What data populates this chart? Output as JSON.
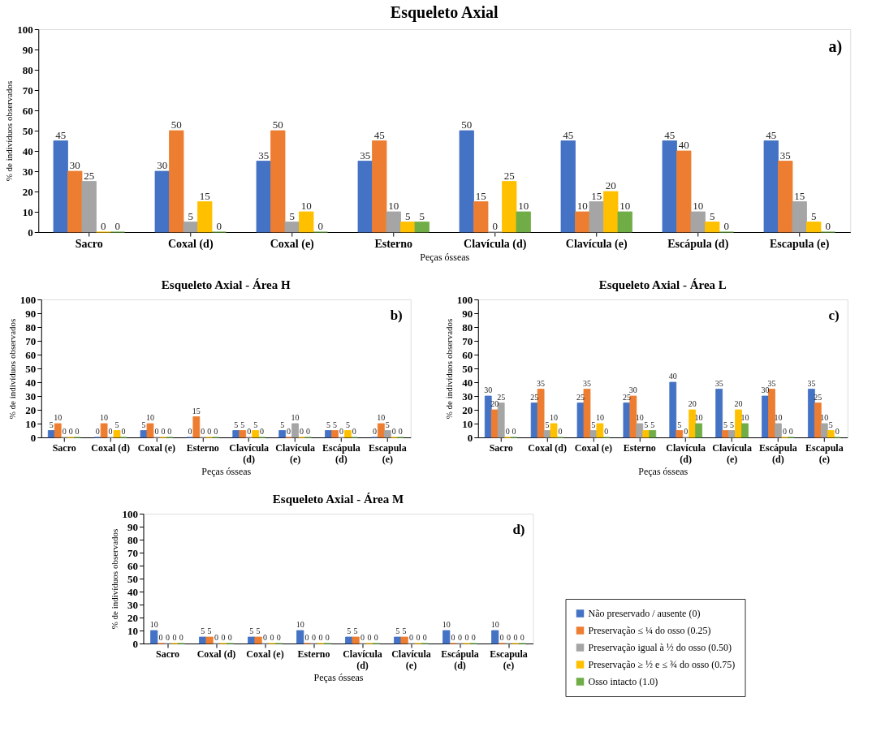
{
  "chart_data": [
    {
      "type": "bar",
      "title": "Esqueleto Axial",
      "xlabel": "Peças ósseas",
      "ylabel": "% de indivíduos observados",
      "categories": [
        "Sacro",
        "Coxal (d)",
        "Coxal (e)",
        "Esterno",
        "Clavícula (d)",
        "Clavícula (e)",
        "Escápula (d)",
        "Escapula (e)"
      ],
      "ylim": [
        0,
        100
      ],
      "yticks": [
        0,
        10,
        20,
        30,
        40,
        50,
        60,
        70,
        80,
        90,
        100
      ],
      "grid": false,
      "legend": "bottom right",
      "data_labels": true,
      "annotations": [
        "a)"
      ],
      "series": [
        {
          "name": "Não preservado / ausente (0)",
          "color": "#4472c4",
          "values": [
            45,
            30,
            35,
            35,
            50,
            45,
            45,
            45
          ]
        },
        {
          "name": "Preservação ≤ ¼ do osso (0.25)",
          "color": "#ed7d31",
          "values": [
            30,
            50,
            50,
            45,
            15,
            10,
            40,
            35
          ]
        },
        {
          "name": "Preservação igual à ½ do osso (0.50)",
          "color": "#a5a5a5",
          "values": [
            25,
            5,
            5,
            10,
            0,
            15,
            10,
            15
          ]
        },
        {
          "name": "Preservação ≥ ½ e ≤ ¾ do osso (0.75)",
          "color": "#ffc000",
          "values": [
            0,
            15,
            10,
            5,
            25,
            20,
            5,
            5
          ]
        },
        {
          "name": "Osso intacto (1.0)",
          "color": "#70ad47",
          "values": [
            0,
            0,
            0,
            5,
            10,
            10,
            0,
            0
          ]
        }
      ]
    },
    {
      "type": "bar",
      "title": "Esqueleto Axial - Área H",
      "xlabel": "Peças ósseas",
      "ylabel": "% de indivíduos observados",
      "categories": [
        "Sacro",
        "Coxal (d)",
        "Coxal (e)",
        "Esterno",
        "Clavícula (d)",
        "Clavícula (e)",
        "Escápula (d)",
        "Escapula (e)"
      ],
      "ylim": [
        0,
        100
      ],
      "yticks": [
        0,
        10,
        20,
        30,
        40,
        50,
        60,
        70,
        80,
        90,
        100
      ],
      "grid": false,
      "data_labels": true,
      "annotations": [
        "b)"
      ],
      "series": [
        {
          "color": "#4472c4",
          "values": [
            5,
            0,
            5,
            0,
            5,
            5,
            5,
            0
          ]
        },
        {
          "color": "#ed7d31",
          "values": [
            10,
            10,
            10,
            15,
            5,
            0,
            5,
            10
          ]
        },
        {
          "color": "#a5a5a5",
          "values": [
            0,
            0,
            0,
            0,
            0,
            10,
            0,
            5
          ]
        },
        {
          "color": "#ffc000",
          "values": [
            0,
            5,
            0,
            0,
            5,
            0,
            5,
            0
          ]
        },
        {
          "color": "#70ad47",
          "values": [
            0,
            0,
            0,
            0,
            0,
            0,
            0,
            0
          ]
        }
      ]
    },
    {
      "type": "bar",
      "title": "Esqueleto Axial - Área L",
      "xlabel": "Peças ósseas",
      "ylabel": "% de indivíduos observados",
      "categories": [
        "Sacro",
        "Coxal (d)",
        "Coxal (e)",
        "Esterno",
        "Clavícula (d)",
        "Clavícula (e)",
        "Escápula (d)",
        "Escapula (e)"
      ],
      "ylim": [
        0,
        100
      ],
      "yticks": [
        0,
        10,
        20,
        30,
        40,
        50,
        60,
        70,
        80,
        90,
        100
      ],
      "grid": false,
      "data_labels": true,
      "annotations": [
        "c)"
      ],
      "series": [
        {
          "color": "#4472c4",
          "values": [
            30,
            25,
            25,
            25,
            40,
            35,
            30,
            35
          ]
        },
        {
          "color": "#ed7d31",
          "values": [
            20,
            35,
            35,
            30,
            5,
            5,
            35,
            25
          ]
        },
        {
          "color": "#a5a5a5",
          "values": [
            25,
            5,
            5,
            10,
            0,
            5,
            10,
            10
          ]
        },
        {
          "color": "#ffc000",
          "values": [
            0,
            10,
            10,
            5,
            20,
            20,
            0,
            5
          ]
        },
        {
          "color": "#70ad47",
          "values": [
            0,
            0,
            0,
            5,
            10,
            10,
            0,
            0
          ]
        }
      ]
    },
    {
      "type": "bar",
      "title": "Esqueleto Axial - Área M",
      "xlabel": "Peças ósseas",
      "ylabel": "% de indivíduos observados",
      "categories": [
        "Sacro",
        "Coxal (d)",
        "Coxal (e)",
        "Esterno",
        "Clavícula (d)",
        "Clavícula (e)",
        "Escápula (d)",
        "Escapula (e)"
      ],
      "ylim": [
        0,
        100
      ],
      "yticks": [
        0,
        10,
        20,
        30,
        40,
        50,
        60,
        70,
        80,
        90,
        100
      ],
      "grid": false,
      "data_labels": true,
      "annotations": [
        "d)"
      ],
      "series": [
        {
          "color": "#4472c4",
          "values": [
            10,
            5,
            5,
            10,
            5,
            5,
            10,
            10
          ]
        },
        {
          "color": "#ed7d31",
          "values": [
            0,
            5,
            5,
            0,
            5,
            5,
            0,
            0
          ]
        },
        {
          "color": "#a5a5a5",
          "values": [
            0,
            0,
            0,
            0,
            0,
            0,
            0,
            0
          ]
        },
        {
          "color": "#ffc000",
          "values": [
            0,
            0,
            0,
            0,
            0,
            0,
            0,
            0
          ]
        },
        {
          "color": "#70ad47",
          "values": [
            0,
            0,
            0,
            0,
            0,
            0,
            0,
            0
          ]
        }
      ]
    }
  ]
}
